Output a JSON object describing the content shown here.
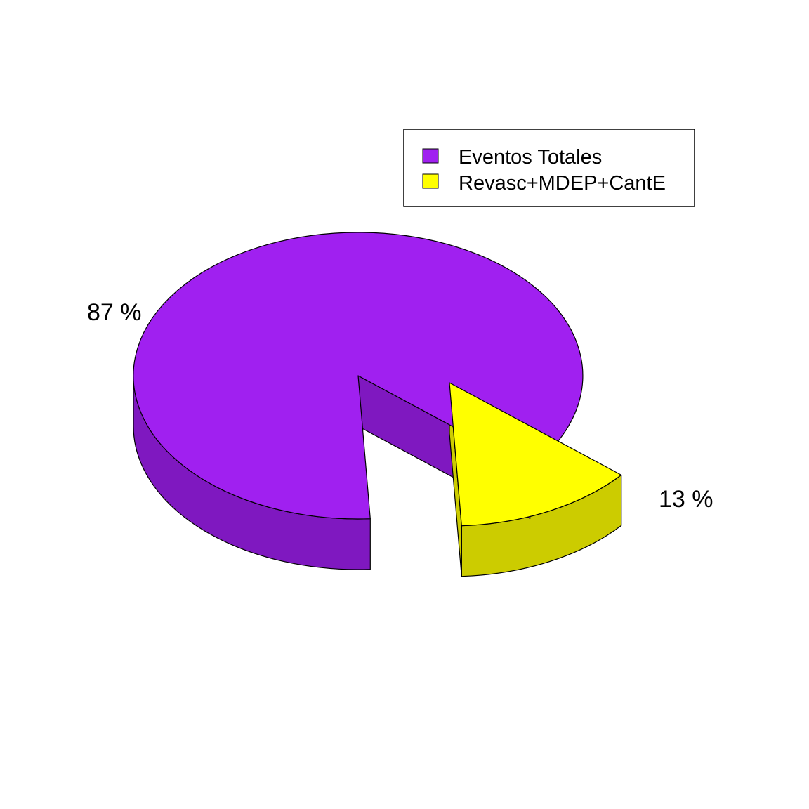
{
  "chart_data": {
    "type": "pie",
    "style": "3d-exploded",
    "slices": [
      {
        "label": "Eventos Totales",
        "value": 87,
        "value_label": "87 %",
        "color": "#A020F0",
        "side_color": "#7F18C0"
      },
      {
        "label": "Revasc+MDEP+CantE",
        "value": 13,
        "value_label": "13 %",
        "color": "#FFFF00",
        "side_color": "#CCCC00"
      }
    ],
    "legend": {
      "position": "top-right",
      "entries": [
        "Eventos Totales",
        "Revasc+MDEP+CantE"
      ]
    },
    "title": ""
  }
}
